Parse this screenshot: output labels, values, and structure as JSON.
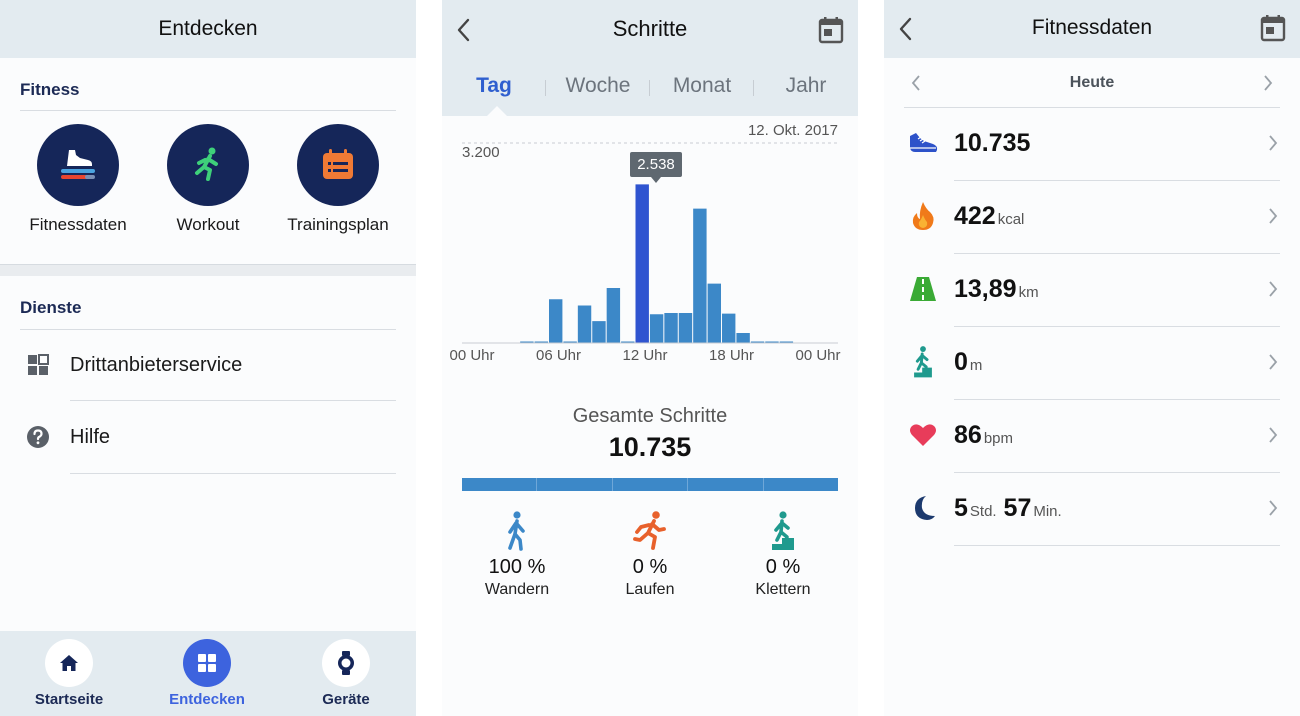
{
  "discover": {
    "title": "Entdecken",
    "fitness_section": "Fitness",
    "fitness_items": [
      {
        "label": "Fitnessdaten",
        "icon": "shoe-bars-icon"
      },
      {
        "label": "Workout",
        "icon": "runner-icon"
      },
      {
        "label": "Trainingsplan",
        "icon": "calendar-list-icon"
      }
    ],
    "services_section": "Dienste",
    "services": [
      {
        "label": "Drittanbieterservice",
        "icon": "grid-icon"
      },
      {
        "label": "Hilfe",
        "icon": "help-icon"
      }
    ],
    "tabs": [
      {
        "label": "Startseite",
        "icon": "home-icon",
        "active": false
      },
      {
        "label": "Entdecken",
        "icon": "grid-icon",
        "active": true
      },
      {
        "label": "Geräte",
        "icon": "watch-icon",
        "active": false
      }
    ]
  },
  "steps": {
    "title": "Schritte",
    "periods": [
      "Tag",
      "Woche",
      "Monat",
      "Jahr"
    ],
    "active_period": "Tag",
    "date": "12. Okt. 2017",
    "y_max_label": "3.200",
    "tooltip": "2.538",
    "total_title": "Gesamte Schritte",
    "total_value": "10.735",
    "activities": [
      {
        "pct": "100 %",
        "name": "Wandern",
        "icon": "walker-icon",
        "color": "#3c88c8"
      },
      {
        "pct": "0 %",
        "name": "Laufen",
        "icon": "runner-icon",
        "color": "#e8612c"
      },
      {
        "pct": "0 %",
        "name": "Klettern",
        "icon": "climber-icon",
        "color": "#1f9a8e"
      }
    ]
  },
  "chart_data": {
    "type": "bar",
    "title": "",
    "x_tick_labels": [
      "00 Uhr",
      "06 Uhr",
      "12 Uhr",
      "18 Uhr",
      "00 Uhr"
    ],
    "ylim": [
      0,
      3200
    ],
    "x_unit": "hour",
    "categories": [
      4,
      5,
      6,
      7,
      8,
      9,
      10,
      11,
      12,
      13,
      14,
      15,
      16,
      17,
      18,
      19,
      20,
      21,
      22
    ],
    "values": [
      0,
      20,
      700,
      20,
      600,
      350,
      880,
      20,
      2538,
      460,
      480,
      480,
      2150,
      950,
      470,
      160,
      20,
      0,
      0
    ],
    "highlight_category": 12,
    "colors": {
      "bar": "#3c88c8",
      "highlight": "#2f54d0"
    }
  },
  "fitness": {
    "title": "Fitnessdaten",
    "day": "Heute",
    "metrics": [
      {
        "value": "10.735",
        "unit": "",
        "icon": "shoe-icon",
        "color": "#2d52c9"
      },
      {
        "value": "422",
        "unit": "kcal",
        "icon": "flame-icon",
        "color": "#f07a1a"
      },
      {
        "value": "13,89",
        "unit": "km",
        "icon": "road-icon",
        "color": "#3aaa35"
      },
      {
        "value": "0",
        "unit": "m",
        "icon": "climber-icon",
        "color": "#1f9a8e"
      },
      {
        "value": "86",
        "unit": "bpm",
        "icon": "heart-icon",
        "color": "#e83c5a"
      },
      {
        "value": "5",
        "unit": "Std.",
        "value2": "57",
        "unit2": "Min.",
        "icon": "moon-icon",
        "color": "#1c3a6e"
      }
    ]
  }
}
